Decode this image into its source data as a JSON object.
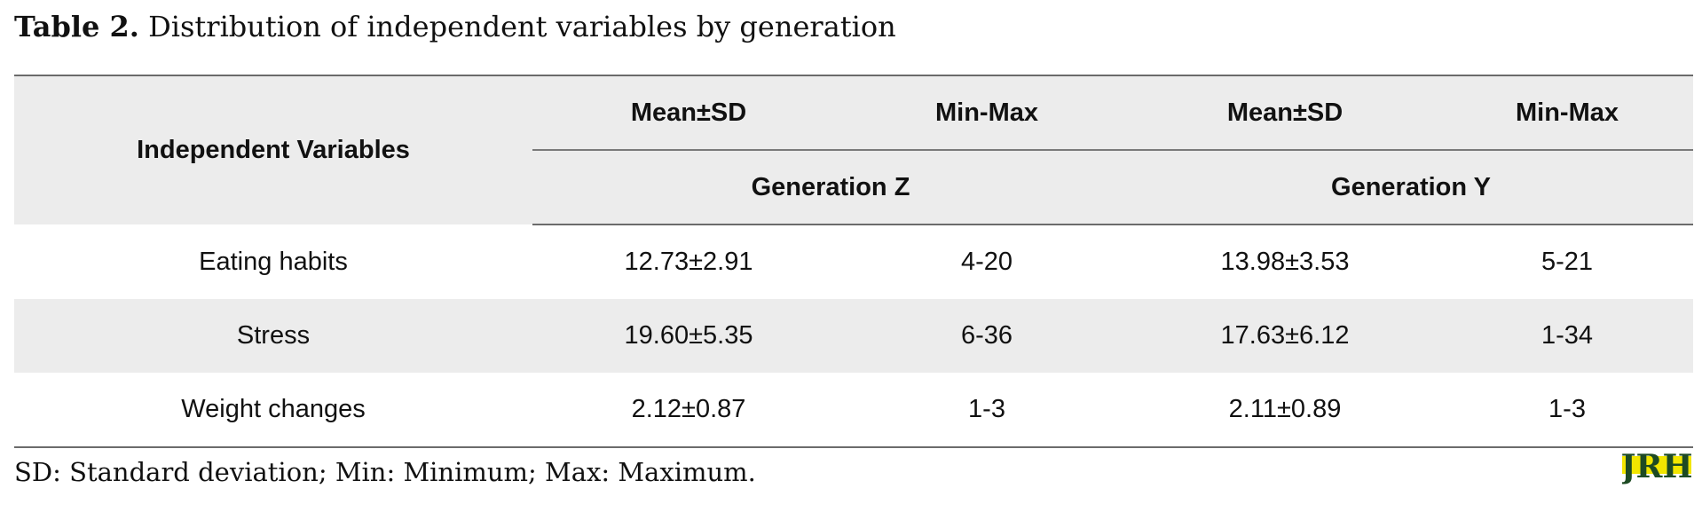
{
  "caption": {
    "label": "Table 2.",
    "text": "Distribution of independent variables by generation"
  },
  "table": {
    "row_header": "Independent Variables",
    "stat_headers": [
      "Mean±SD",
      "Min-Max",
      "Mean±SD",
      "Min-Max"
    ],
    "groups": [
      "Generation Z",
      "Generation Y"
    ],
    "rows": [
      {
        "variable": "Eating habits",
        "z_mean_sd": "12.73±2.91",
        "z_min_max": "4-20",
        "y_mean_sd": "13.98±3.53",
        "y_min_max": "5-21"
      },
      {
        "variable": "Stress",
        "z_mean_sd": "19.60±5.35",
        "z_min_max": "6-36",
        "y_mean_sd": "17.63±6.12",
        "y_min_max": "1-34"
      },
      {
        "variable": "Weight changes",
        "z_mean_sd": "2.12±0.87",
        "z_min_max": "1-3",
        "y_mean_sd": "2.11±0.89",
        "y_min_max": "1-3"
      }
    ]
  },
  "footnote": "SD: Standard deviation; Min: Minimum; Max: Maximum.",
  "logo": {
    "text": "JRH",
    "colors": {
      "letters": "#1d4a23",
      "highlight": "#f2e600"
    }
  },
  "colors": {
    "header_bg": "#ececec",
    "shaded_row_bg": "#ececec",
    "rule": "#6b6b6b"
  }
}
